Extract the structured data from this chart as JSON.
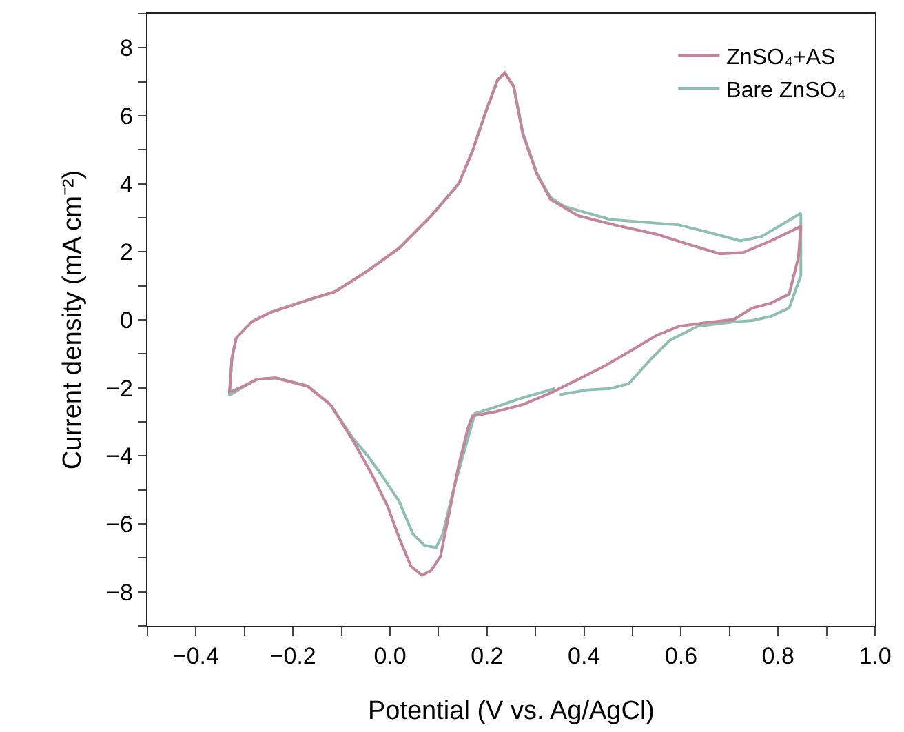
{
  "chart_data": {
    "type": "line",
    "xlabel": "Potential (V vs. Ag/AgCl)",
    "ylabel": "Current density (mA cm⁻²)",
    "xlim": [
      -0.5,
      1.0
    ],
    "ylim": [
      -9,
      9
    ],
    "xticks": [
      {
        "value": -0.5,
        "label": null
      },
      {
        "value": -0.4,
        "label": "−0.4"
      },
      {
        "value": -0.3,
        "label": null
      },
      {
        "value": -0.2,
        "label": "−0.2"
      },
      {
        "value": -0.1,
        "label": null
      },
      {
        "value": 0,
        "label": "0.0"
      },
      {
        "value": 0.1,
        "label": null
      },
      {
        "value": 0.2,
        "label": "0.2"
      },
      {
        "value": 0.3,
        "label": null
      },
      {
        "value": 0.4,
        "label": "0.4"
      },
      {
        "value": 0.5,
        "label": null
      },
      {
        "value": 0.6,
        "label": "0.6"
      },
      {
        "value": 0.7,
        "label": null
      },
      {
        "value": 0.8,
        "label": "0.8"
      },
      {
        "value": 0.9,
        "label": null
      },
      {
        "value": 1.0,
        "label": "1.0"
      }
    ],
    "yticks": [
      {
        "value": -9,
        "label": null
      },
      {
        "value": -8,
        "label": "−8"
      },
      {
        "value": -7,
        "label": null
      },
      {
        "value": -6,
        "label": "−6"
      },
      {
        "value": -5,
        "label": null
      },
      {
        "value": -4,
        "label": "−4"
      },
      {
        "value": -3,
        "label": null
      },
      {
        "value": -2,
        "label": "−2"
      },
      {
        "value": -1,
        "label": null
      },
      {
        "value": 0,
        "label": "0"
      },
      {
        "value": 1,
        "label": null
      },
      {
        "value": 2,
        "label": "2"
      },
      {
        "value": 3,
        "label": null
      },
      {
        "value": 4,
        "label": "4"
      },
      {
        "value": 5,
        "label": null
      },
      {
        "value": 6,
        "label": "6"
      },
      {
        "value": 7,
        "label": null
      },
      {
        "value": 8,
        "label": "8"
      },
      {
        "value": 9,
        "label": null
      }
    ],
    "grid": false,
    "legend": "top right",
    "marker": "none",
    "line_style": "solid",
    "series": [
      {
        "name": "Bare ZnSO₄",
        "color": "#8fbfb3",
        "x": [
          0.34,
          0.274,
          0.218,
          0.175,
          0.132,
          0.109,
          0.095,
          0.071,
          0.047,
          0.019,
          -0.019,
          -0.047,
          -0.075,
          -0.123,
          -0.17,
          -0.236,
          -0.274,
          -0.302,
          -0.331,
          -0.326,
          -0.317,
          -0.284,
          -0.246,
          -0.161,
          -0.113,
          -0.047,
          0.019,
          0.085,
          0.142,
          0.17,
          0.199,
          0.222,
          0.237,
          0.255,
          0.274,
          0.303,
          0.331,
          0.36,
          0.454,
          0.596,
          0.652,
          0.723,
          0.766,
          0.847,
          0.847,
          0.823,
          0.785,
          0.747,
          0.709,
          0.634,
          0.577,
          0.539,
          0.492,
          0.454,
          0.407,
          0.35
        ],
        "values": [
          -2.02,
          -2.29,
          -2.56,
          -2.76,
          -4.93,
          -6.29,
          -6.7,
          -6.63,
          -6.29,
          -5.34,
          -4.53,
          -3.98,
          -3.51,
          -2.49,
          -1.95,
          -1.71,
          -1.75,
          -1.97,
          -2.22,
          -1.14,
          -0.53,
          null,
          0.22,
          0.62,
          0.83,
          1.43,
          2.11,
          3.06,
          4.01,
          4.96,
          6.18,
          7.06,
          7.26,
          6.86,
          5.5,
          4.3,
          3.6,
          3.33,
          2.95,
          2.79,
          2.59,
          2.32,
          2.45,
          3.13,
          1.3,
          0.35,
          0.1,
          -0.02,
          -0.06,
          -0.19,
          -0.6,
          -1.14,
          -1.88,
          -2.02,
          -2.06,
          -2.2
        ]
      },
      {
        "name": "ZnSO₄+AS",
        "color": "#c4849a",
        "x": [
          -0.331,
          -0.326,
          -0.317,
          -0.284,
          -0.246,
          -0.161,
          -0.113,
          -0.047,
          0.019,
          0.085,
          0.142,
          0.17,
          0.199,
          0.222,
          0.237,
          0.255,
          0.274,
          0.303,
          0.331,
          0.388,
          0.463,
          0.549,
          0.624,
          0.681,
          0.728,
          0.785,
          0.847,
          0.842,
          0.823,
          0.785,
          0.747,
          0.709,
          0.652,
          0.596,
          0.549,
          0.501,
          0.445,
          0.388,
          0.331,
          0.274,
          0.218,
          0.17,
          0.161,
          0.142,
          0.123,
          0.104,
          0.085,
          0.066,
          0.043,
          0.019,
          -0.005,
          -0.038,
          -0.075,
          -0.123,
          -0.17,
          -0.236,
          -0.274,
          -0.302,
          -0.328
        ],
        "values": [
          -2.15,
          -1.14,
          -0.53,
          -0.05,
          0.22,
          0.62,
          0.83,
          1.43,
          2.11,
          3.06,
          4.01,
          4.96,
          6.18,
          7.06,
          7.26,
          6.86,
          5.45,
          4.28,
          3.54,
          3.06,
          2.79,
          2.52,
          2.18,
          1.94,
          1.98,
          2.32,
          2.75,
          1.84,
          0.76,
          0.49,
          0.35,
          0.01,
          -0.08,
          -0.19,
          -0.46,
          -0.87,
          -1.34,
          -1.75,
          -2.15,
          -2.49,
          -2.7,
          -2.83,
          -3.17,
          -4.25,
          -5.61,
          -6.96,
          -7.37,
          -7.51,
          -7.24,
          -6.42,
          -5.48,
          -4.53,
          -3.58,
          -2.49,
          -1.95,
          -1.71,
          -1.75,
          -1.95,
          -2.12
        ]
      }
    ]
  }
}
